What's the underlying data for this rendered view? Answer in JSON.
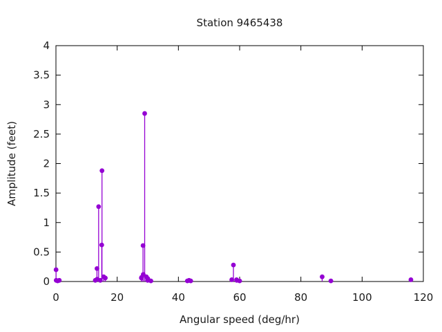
{
  "title": "Station 9465438",
  "chart_data": {
    "type": "scatter",
    "style": "stem-plot (impulses with filled circle markers)",
    "title": "Station 9465438",
    "xlabel": "Angular speed (deg/hr)",
    "ylabel": "Amplitude (feet)",
    "xlim": [
      0,
      120
    ],
    "ylim": [
      0,
      4
    ],
    "grid": false,
    "legend": null,
    "border_box": true,
    "colors": {
      "series": "#9400D3",
      "axis": "#000000",
      "text": "#1a1a1a"
    },
    "x_ticks": {
      "values": [
        0,
        20,
        40,
        60,
        80,
        100,
        120
      ],
      "labels": [
        "0",
        "20",
        "40",
        "60",
        "80",
        "100",
        "120"
      ]
    },
    "y_ticks": {
      "values": [
        0,
        0.5,
        1,
        1.5,
        2,
        2.5,
        3,
        3.5,
        4
      ],
      "labels": [
        "0",
        "0.5",
        "1",
        "1.5",
        "2",
        "2.5",
        "3",
        "3.5",
        "4"
      ]
    },
    "points": [
      [
        0.041,
        0.2
      ],
      [
        0.082,
        0.02
      ],
      [
        0.544,
        0.01
      ],
      [
        1.098,
        0.02
      ],
      [
        12.854,
        0.02
      ],
      [
        13.399,
        0.22
      ],
      [
        13.472,
        0.04
      ],
      [
        13.943,
        1.27
      ],
      [
        14.497,
        0.02
      ],
      [
        14.959,
        0.62
      ],
      [
        15.041,
        1.88
      ],
      [
        15.585,
        0.08
      ],
      [
        16.139,
        0.06
      ],
      [
        27.895,
        0.06
      ],
      [
        27.968,
        0.07
      ],
      [
        28.44,
        0.61
      ],
      [
        28.513,
        0.12
      ],
      [
        28.984,
        2.85
      ],
      [
        29.528,
        0.08
      ],
      [
        29.959,
        0.02
      ],
      [
        30.0,
        0.05
      ],
      [
        30.082,
        0.03
      ],
      [
        31.016,
        0.01
      ],
      [
        42.927,
        0.01
      ],
      [
        43.476,
        0.02
      ],
      [
        44.025,
        0.01
      ],
      [
        57.424,
        0.03
      ],
      [
        57.968,
        0.28
      ],
      [
        58.984,
        0.03
      ],
      [
        59.066,
        0.02
      ],
      [
        60.0,
        0.01
      ],
      [
        86.952,
        0.08
      ],
      [
        89.8,
        0.01
      ],
      [
        115.936,
        0.03
      ]
    ]
  }
}
